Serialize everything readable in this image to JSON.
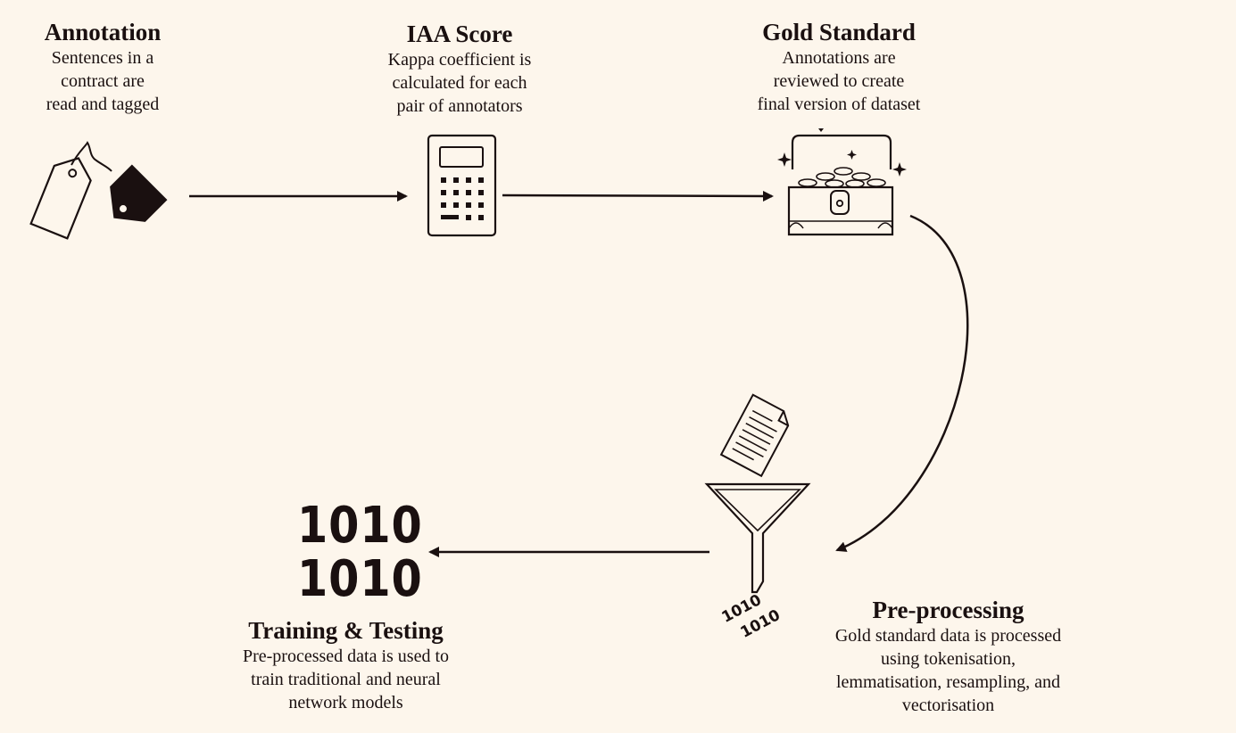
{
  "steps": {
    "annotation": {
      "title": "Annotation",
      "desc": "Sentences in a\ncontract are\nread and tagged"
    },
    "iaa": {
      "title": "IAA Score",
      "desc": "Kappa coefficient is\ncalculated for each\npair of annotators"
    },
    "gold": {
      "title": "Gold Standard",
      "desc": "Annotations are\nreviewed to create\nfinal version of dataset"
    },
    "preprocessing": {
      "title": "Pre-processing",
      "desc": "Gold standard data is processed\nusing tokenisation,\nlemmatisation, resampling, and\nvectorisation"
    },
    "training": {
      "title": "Training & Testing",
      "desc": "Pre-processed data is used to\ntrain traditional and neural\nnetwork models"
    }
  },
  "binary": {
    "big_line_1": "1010",
    "big_line_2": "1010",
    "small_line_1": "1010",
    "small_line_2": "1010"
  },
  "icons": [
    "tags-icon",
    "calculator-icon",
    "treasure-chest-icon",
    "document-icon",
    "funnel-icon",
    "binary-icon"
  ]
}
